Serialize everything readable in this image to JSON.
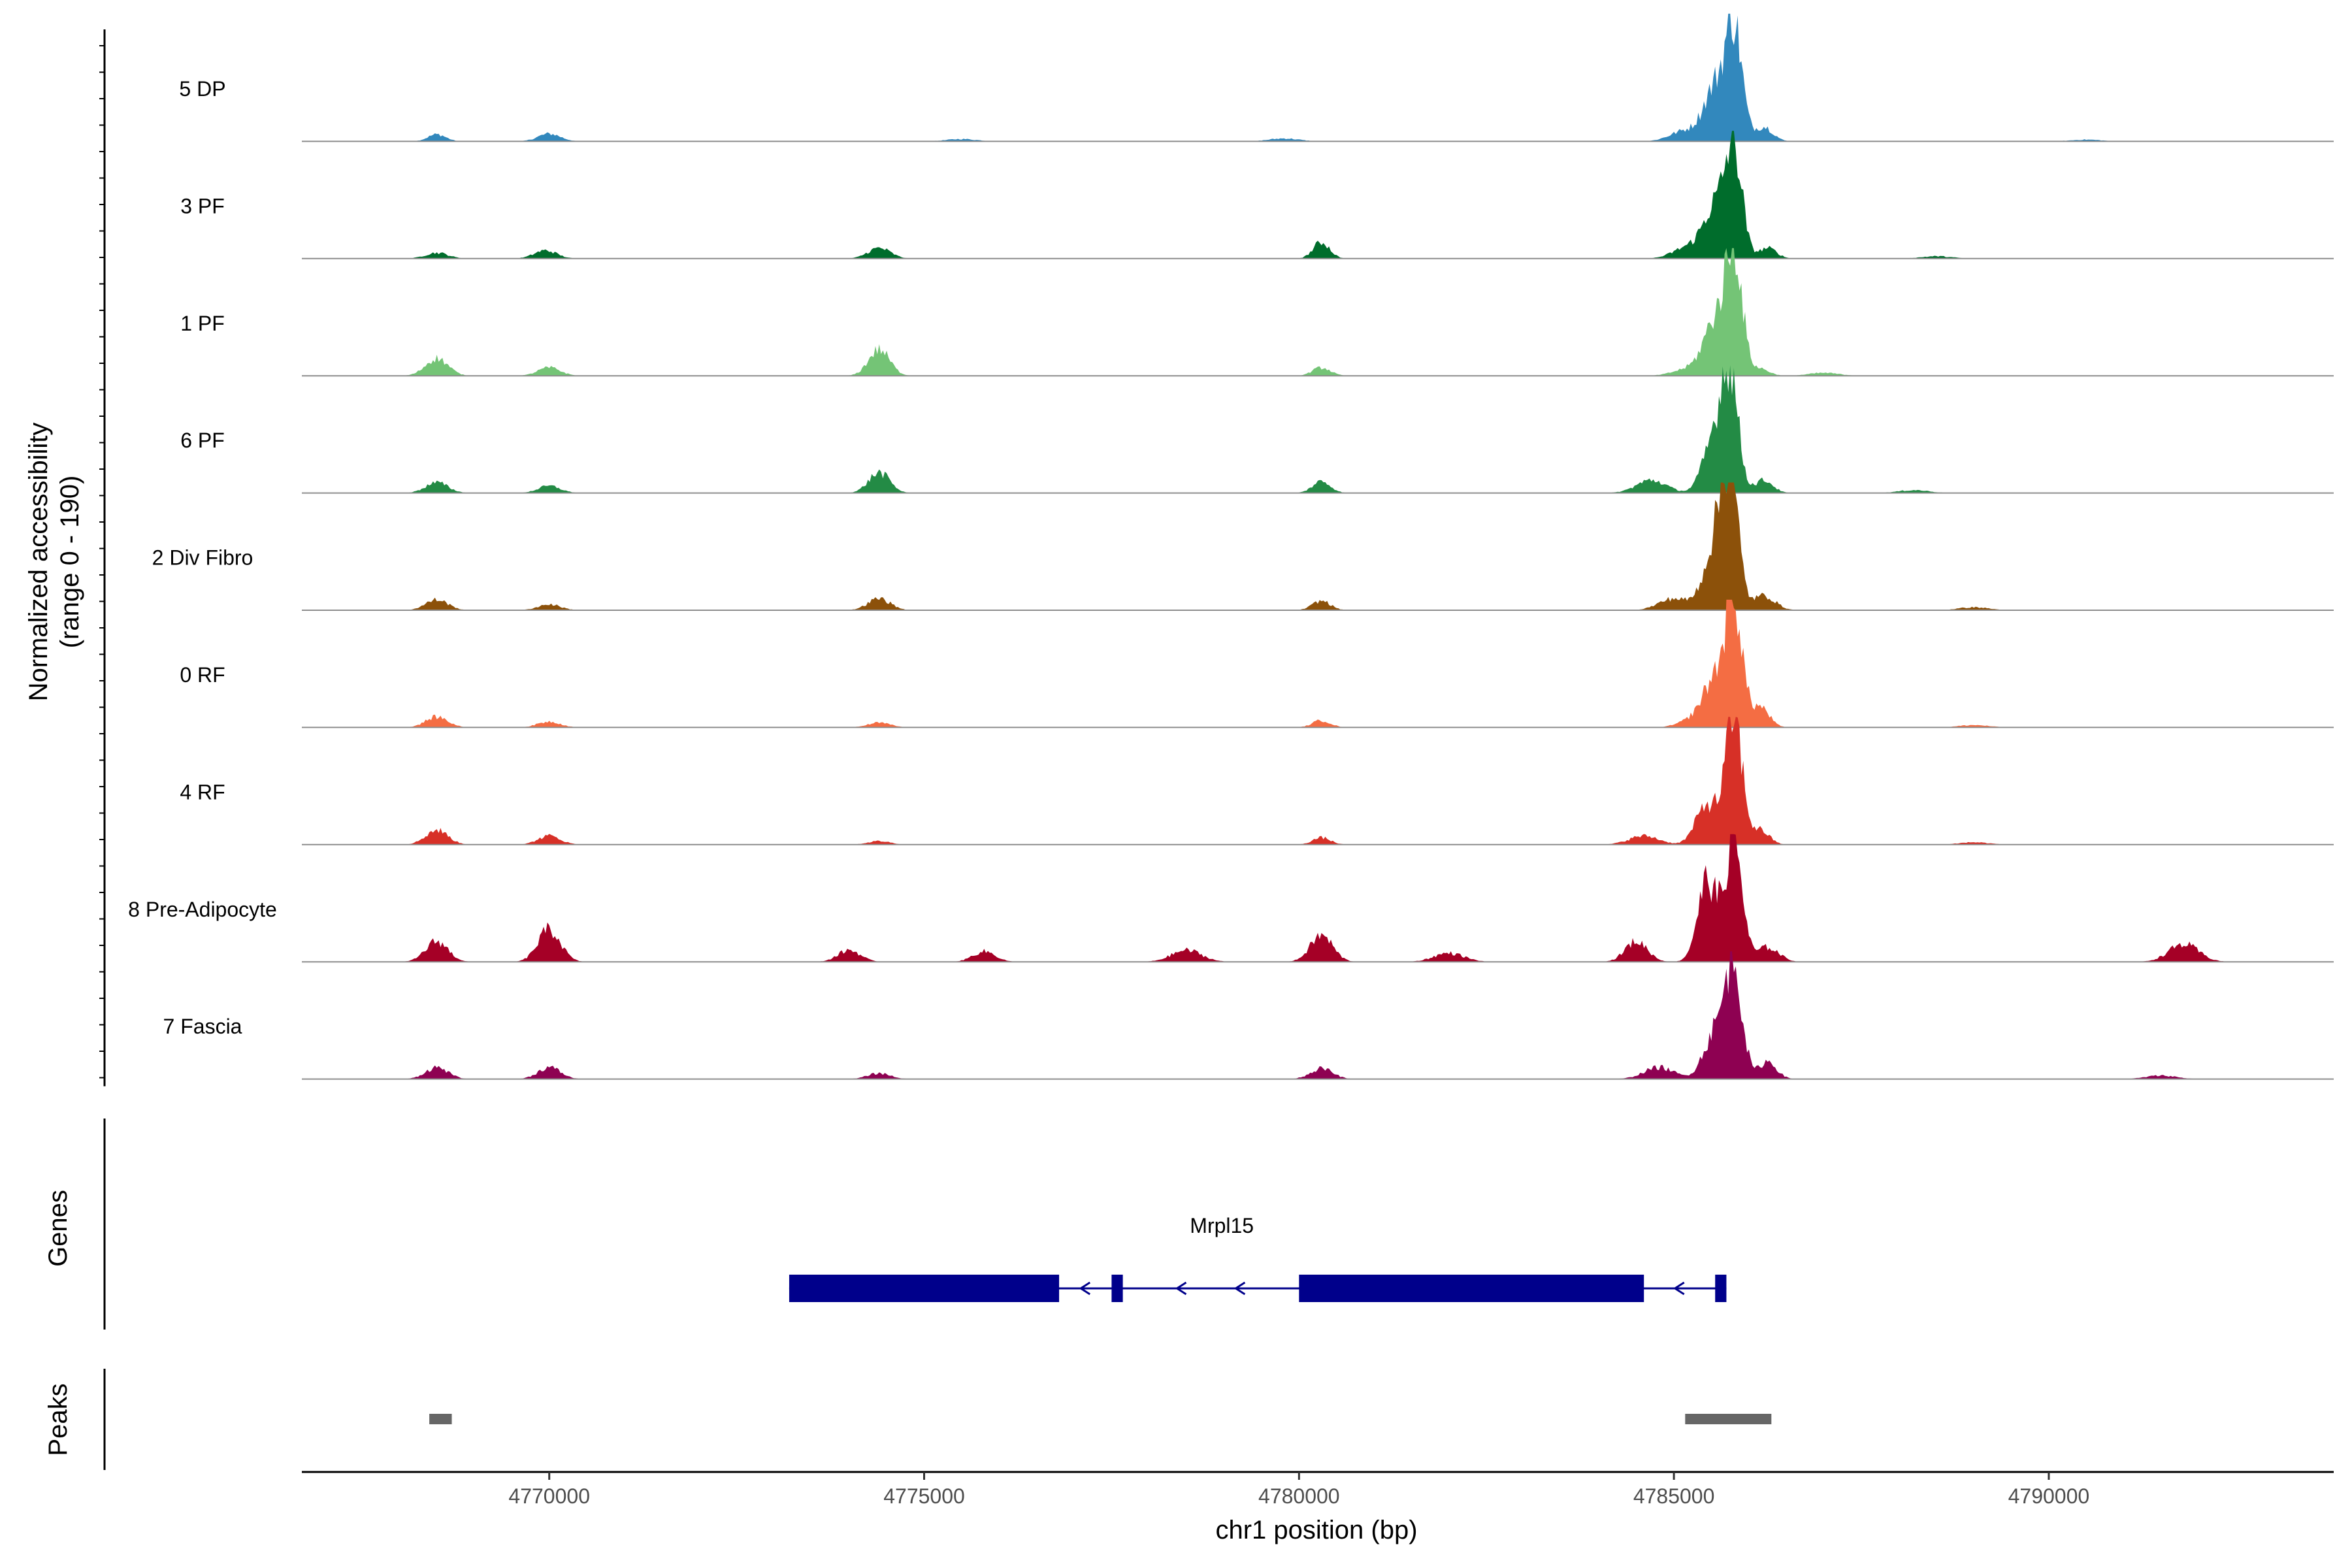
{
  "chart_data": {
    "type": "area",
    "title": "",
    "xlabel": "chr1 position (bp)",
    "ylabel_line1": "Normalized accessibility",
    "ylabel_line2": "(range 0 - 190)",
    "xlim": [
      4766700,
      4793800
    ],
    "ylim": [
      0,
      190
    ],
    "x_ticks": [
      {
        "value": 4770000,
        "label": "4770000"
      },
      {
        "value": 4775000,
        "label": "4775000"
      },
      {
        "value": 4780000,
        "label": "4780000"
      },
      {
        "value": 4785000,
        "label": "4785000"
      },
      {
        "value": 4790000,
        "label": "4790000"
      }
    ],
    "tracks": [
      {
        "name": "5 DP",
        "color": "#3288bd",
        "peaks": [
          [
            4768500,
            12,
            120
          ],
          [
            4770000,
            13,
            150
          ],
          [
            4775500,
            4,
            200
          ],
          [
            4779800,
            5,
            200
          ],
          [
            4785150,
            18,
            200
          ],
          [
            4785550,
            90,
            150
          ],
          [
            4785800,
            190,
            110
          ],
          [
            4786200,
            25,
            120
          ],
          [
            4790500,
            3,
            200
          ]
        ]
      },
      {
        "name": "3 PF",
        "color": "#006d2c",
        "peaks": [
          [
            4768500,
            10,
            150
          ],
          [
            4769950,
            14,
            150
          ],
          [
            4774400,
            18,
            150
          ],
          [
            4780300,
            28,
            110
          ],
          [
            4785200,
            20,
            200
          ],
          [
            4785550,
            85,
            150
          ],
          [
            4785800,
            180,
            110
          ],
          [
            4786250,
            18,
            120
          ],
          [
            4788500,
            4,
            200
          ]
        ]
      },
      {
        "name": "1 PF",
        "color": "#74c476",
        "peaks": [
          [
            4768500,
            30,
            150
          ],
          [
            4770000,
            14,
            150
          ],
          [
            4774400,
            45,
            140
          ],
          [
            4780300,
            14,
            120
          ],
          [
            4785200,
            12,
            200
          ],
          [
            4785550,
            90,
            150
          ],
          [
            4785800,
            210,
            110
          ],
          [
            4786150,
            12,
            120
          ],
          [
            4787000,
            5,
            200
          ]
        ]
      },
      {
        "name": "6 PF",
        "color": "#238b45",
        "peaks": [
          [
            4768500,
            18,
            150
          ],
          [
            4770000,
            12,
            150
          ],
          [
            4774400,
            35,
            140
          ],
          [
            4780300,
            20,
            120
          ],
          [
            4784700,
            22,
            200
          ],
          [
            4785550,
            95,
            150
          ],
          [
            4785750,
            185,
            110
          ],
          [
            4786200,
            22,
            120
          ],
          [
            4788200,
            5,
            200
          ]
        ]
      },
      {
        "name": "2 Div Fibro",
        "color": "#8c510a",
        "peaks": [
          [
            4768500,
            18,
            150
          ],
          [
            4770000,
            10,
            150
          ],
          [
            4774400,
            20,
            150
          ],
          [
            4780300,
            16,
            120
          ],
          [
            4785000,
            20,
            200
          ],
          [
            4785550,
            110,
            150
          ],
          [
            4785750,
            215,
            110
          ],
          [
            4786200,
            25,
            150
          ],
          [
            4789000,
            5,
            200
          ]
        ]
      },
      {
        "name": "0 RF",
        "color": "#f46d43",
        "peaks": [
          [
            4768500,
            18,
            150
          ],
          [
            4770000,
            10,
            150
          ],
          [
            4774400,
            8,
            150
          ],
          [
            4780300,
            12,
            120
          ],
          [
            4785300,
            15,
            200
          ],
          [
            4785550,
            75,
            150
          ],
          [
            4785800,
            210,
            110
          ],
          [
            4786150,
            35,
            120
          ],
          [
            4789000,
            4,
            200
          ]
        ]
      },
      {
        "name": "4 RF",
        "color": "#d73027",
        "peaks": [
          [
            4768500,
            25,
            150
          ],
          [
            4770000,
            15,
            150
          ],
          [
            4774400,
            6,
            150
          ],
          [
            4780300,
            12,
            120
          ],
          [
            4784600,
            15,
            200
          ],
          [
            4785450,
            70,
            150
          ],
          [
            4785800,
            220,
            110
          ],
          [
            4786150,
            25,
            120
          ],
          [
            4789000,
            4,
            200
          ]
        ]
      },
      {
        "name": "8 Pre-Adipocyte",
        "color": "#a50026",
        "peaks": [
          [
            4768500,
            35,
            150
          ],
          [
            4770000,
            55,
            150
          ],
          [
            4774000,
            20,
            150
          ],
          [
            4775800,
            18,
            150
          ],
          [
            4778500,
            20,
            200
          ],
          [
            4780300,
            45,
            150
          ],
          [
            4782000,
            15,
            200
          ],
          [
            4784500,
            35,
            150
          ],
          [
            4785450,
            140,
            130
          ],
          [
            4785800,
            210,
            110
          ],
          [
            4786250,
            25,
            150
          ],
          [
            4791800,
            30,
            200
          ]
        ]
      },
      {
        "name": "7 Fascia",
        "color": "#8e0152",
        "peaks": [
          [
            4768500,
            20,
            150
          ],
          [
            4770000,
            20,
            150
          ],
          [
            4774400,
            10,
            150
          ],
          [
            4780300,
            18,
            150
          ],
          [
            4784800,
            20,
            200
          ],
          [
            4785550,
            80,
            150
          ],
          [
            4785800,
            190,
            110
          ],
          [
            4786250,
            30,
            120
          ],
          [
            4791500,
            6,
            200
          ]
        ]
      }
    ],
    "genes_track_label": "Genes",
    "genes": [
      {
        "name": "Mrpl15",
        "start": 4773200,
        "end": 4785700,
        "strand": "-",
        "exons": [
          [
            4773200,
            4776800
          ],
          [
            4777500,
            4777650
          ],
          [
            4780000,
            4784600
          ],
          [
            4785550,
            4785700
          ]
        ],
        "color": "#00008b"
      }
    ],
    "peaks_track_label": "Peaks",
    "called_peaks": [
      [
        4768400,
        4768700
      ],
      [
        4785150,
        4786300
      ]
    ],
    "peaks_color": "#666666"
  }
}
